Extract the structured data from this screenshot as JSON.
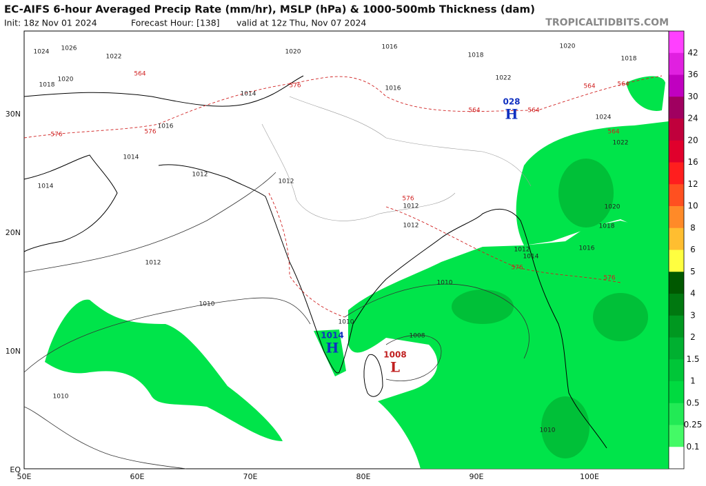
{
  "header": {
    "title": "EC-AIFS 6-hour Averaged Precip Rate (mm/hr), MSLP (hPa) & 1000-500mb Thickness (dam)",
    "subtitle": [
      "Init: 18z Nov 01 2024",
      "Forecast Hour: [138]",
      "valid at 12z Thu, Nov 07 2024"
    ],
    "watermark": "TROPICALTIDBITS.COM"
  },
  "map": {
    "lat_labels": [
      "30N",
      "20N",
      "10N",
      "EQ"
    ],
    "lon_labels": [
      "50E",
      "60E",
      "70E",
      "80E",
      "90E",
      "100E"
    ],
    "centers": [
      {
        "symbol": "H",
        "value": "028"
      },
      {
        "symbol": "H",
        "value": "1014"
      },
      {
        "symbol": "L",
        "value": "1008"
      }
    ],
    "isobar_labels": [
      "1024",
      "1026",
      "1022",
      "1020",
      "1018",
      "1016",
      "1014",
      "1012",
      "1012",
      "1012",
      "1010",
      "1010",
      "1010",
      "1008",
      "1010",
      "1014",
      "1012",
      "1016",
      "1018",
      "1020",
      "1016",
      "1018",
      "1020",
      "1018",
      "1024",
      "1022",
      "1016",
      "1020",
      "1014",
      "1012",
      "1012",
      "1022",
      "1014",
      "1010"
    ],
    "thickness_labels": [
      "564",
      "576",
      "576",
      "576",
      "564",
      "564",
      "576",
      "576",
      "576",
      "564",
      "564",
      "564"
    ]
  },
  "colorbar": {
    "labels": [
      "42",
      "36",
      "30",
      "24",
      "20",
      "16",
      "12",
      "10",
      "8",
      "6",
      "5",
      "4",
      "3",
      "2",
      "1.5",
      "1",
      "0.5",
      "0.25",
      "0.1"
    ],
    "colors": [
      "#ff40ff",
      "#e020e0",
      "#c000c0",
      "#a00060",
      "#c0003c",
      "#e0002c",
      "#ff1e1e",
      "#ff5020",
      "#ff8a28",
      "#ffbe30",
      "#ffff40",
      "#005800",
      "#007810",
      "#009820",
      "#00b030",
      "#00c638",
      "#00da40",
      "#22ea55",
      "#44fa66",
      "#ffffff"
    ]
  }
}
